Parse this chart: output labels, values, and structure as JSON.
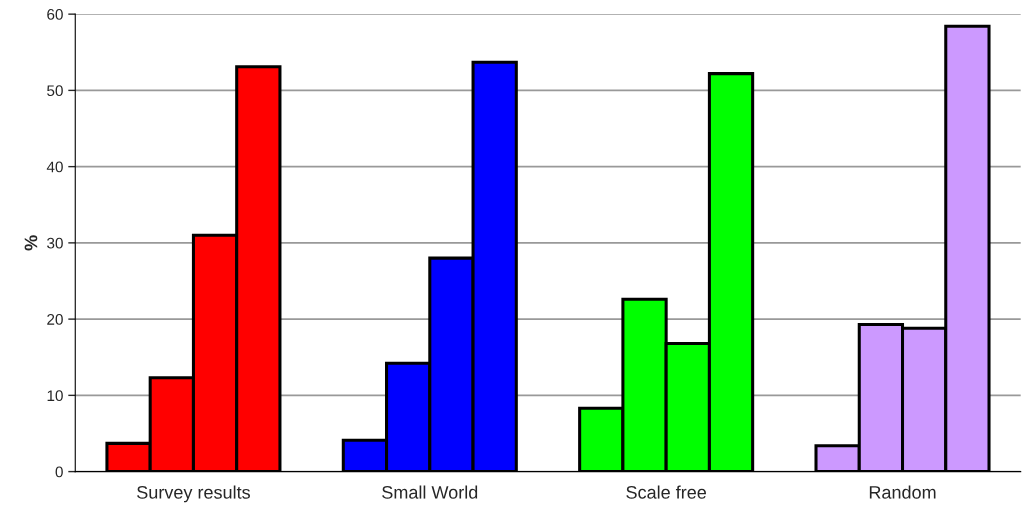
{
  "chart_data": {
    "type": "bar",
    "ylabel": "%",
    "categories": [
      "Survey results",
      "Small World",
      "Scale free",
      "Random"
    ],
    "series": [
      {
        "colors": [
          "#ff0000",
          "#0000ff",
          "#00ff00",
          "#cc99ff"
        ],
        "values": [
          3.7,
          4.1,
          8.3,
          3.4
        ]
      },
      {
        "colors": [
          "#ff0000",
          "#0000ff",
          "#00ff00",
          "#cc99ff"
        ],
        "values": [
          12.3,
          14.2,
          22.6,
          19.3
        ]
      },
      {
        "colors": [
          "#ff0000",
          "#0000ff",
          "#00ff00",
          "#cc99ff"
        ],
        "values": [
          31.0,
          28.0,
          16.8,
          18.8
        ]
      },
      {
        "colors": [
          "#ff0000",
          "#0000ff",
          "#00ff00",
          "#cc99ff"
        ],
        "values": [
          53.1,
          53.7,
          52.2,
          58.4
        ]
      }
    ],
    "ylim": [
      0,
      60
    ],
    "yticks": [
      0,
      10,
      20,
      30,
      40,
      50,
      60
    ],
    "grid": "y"
  }
}
